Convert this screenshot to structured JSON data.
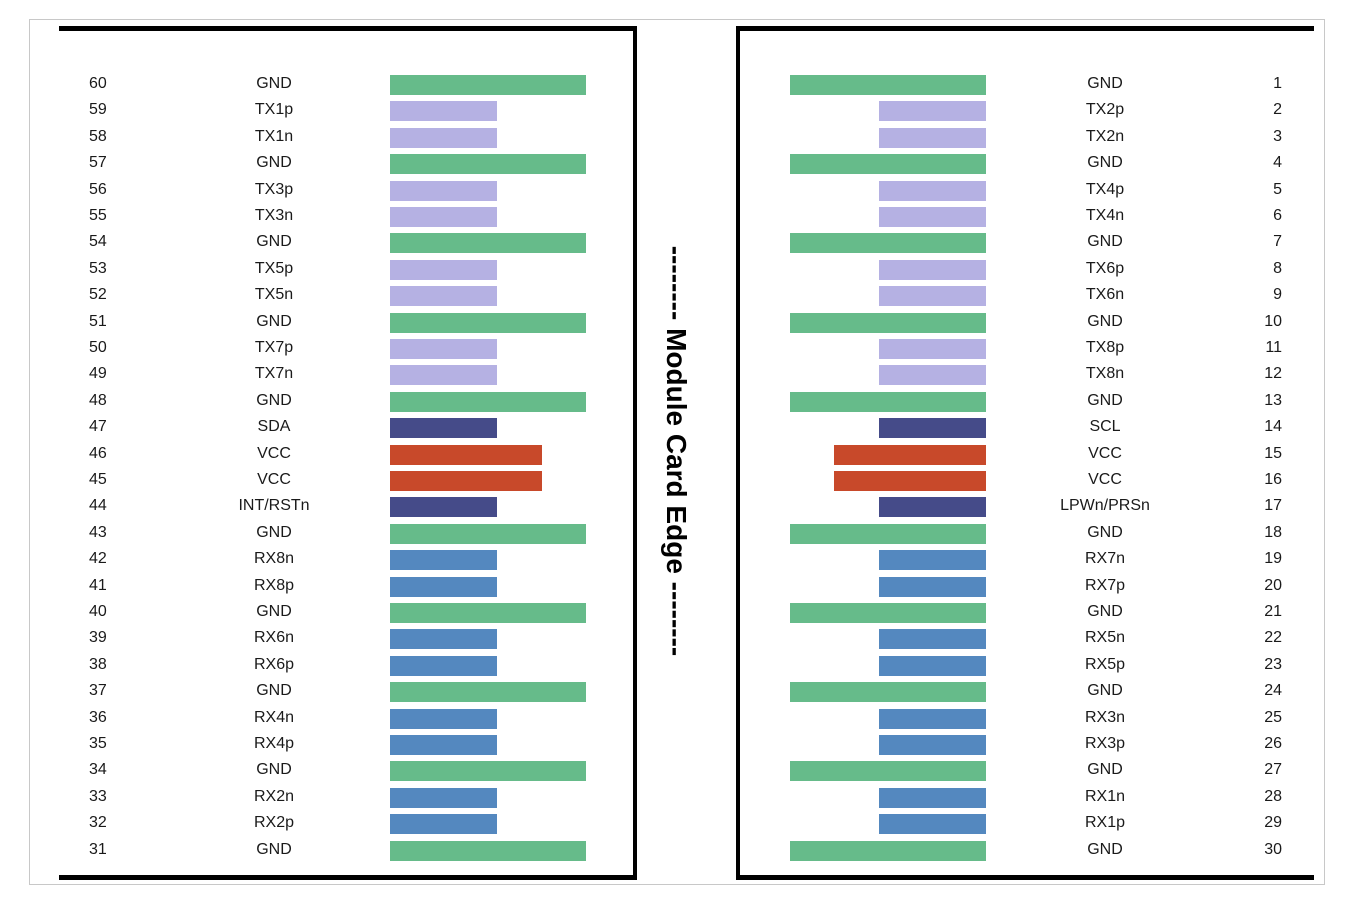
{
  "title": "Module Card Edge",
  "colors": {
    "GND": "#66bb8a",
    "TX": "#b5b1e3",
    "RX": "#5488bf",
    "CTRL": "#454b89",
    "VCC": "#c8492a"
  },
  "left_pins": [
    {
      "pin": "60",
      "signal": "GND",
      "type": "GND"
    },
    {
      "pin": "59",
      "signal": "TX1p",
      "type": "TX"
    },
    {
      "pin": "58",
      "signal": "TX1n",
      "type": "TX"
    },
    {
      "pin": "57",
      "signal": "GND",
      "type": "GND"
    },
    {
      "pin": "56",
      "signal": "TX3p",
      "type": "TX"
    },
    {
      "pin": "55",
      "signal": "TX3n",
      "type": "TX"
    },
    {
      "pin": "54",
      "signal": "GND",
      "type": "GND"
    },
    {
      "pin": "53",
      "signal": "TX5p",
      "type": "TX"
    },
    {
      "pin": "52",
      "signal": "TX5n",
      "type": "TX"
    },
    {
      "pin": "51",
      "signal": "GND",
      "type": "GND"
    },
    {
      "pin": "50",
      "signal": "TX7p",
      "type": "TX"
    },
    {
      "pin": "49",
      "signal": "TX7n",
      "type": "TX"
    },
    {
      "pin": "48",
      "signal": "GND",
      "type": "GND"
    },
    {
      "pin": "47",
      "signal": "SDA",
      "type": "CTRL"
    },
    {
      "pin": "46",
      "signal": "VCC",
      "type": "VCC"
    },
    {
      "pin": "45",
      "signal": "VCC",
      "type": "VCC"
    },
    {
      "pin": "44",
      "signal": "INT/RSTn",
      "type": "CTRL"
    },
    {
      "pin": "43",
      "signal": "GND",
      "type": "GND"
    },
    {
      "pin": "42",
      "signal": "RX8n",
      "type": "RX"
    },
    {
      "pin": "41",
      "signal": "RX8p",
      "type": "RX"
    },
    {
      "pin": "40",
      "signal": "GND",
      "type": "GND"
    },
    {
      "pin": "39",
      "signal": "RX6n",
      "type": "RX"
    },
    {
      "pin": "38",
      "signal": "RX6p",
      "type": "RX"
    },
    {
      "pin": "37",
      "signal": "GND",
      "type": "GND"
    },
    {
      "pin": "36",
      "signal": "RX4n",
      "type": "RX"
    },
    {
      "pin": "35",
      "signal": "RX4p",
      "type": "RX"
    },
    {
      "pin": "34",
      "signal": "GND",
      "type": "GND"
    },
    {
      "pin": "33",
      "signal": "RX2n",
      "type": "RX"
    },
    {
      "pin": "32",
      "signal": "RX2p",
      "type": "RX"
    },
    {
      "pin": "31",
      "signal": "GND",
      "type": "GND"
    }
  ],
  "right_pins": [
    {
      "pin": "1",
      "signal": "GND",
      "type": "GND"
    },
    {
      "pin": "2",
      "signal": "TX2p",
      "type": "TX"
    },
    {
      "pin": "3",
      "signal": "TX2n",
      "type": "TX"
    },
    {
      "pin": "4",
      "signal": "GND",
      "type": "GND"
    },
    {
      "pin": "5",
      "signal": "TX4p",
      "type": "TX"
    },
    {
      "pin": "6",
      "signal": "TX4n",
      "type": "TX"
    },
    {
      "pin": "7",
      "signal": "GND",
      "type": "GND"
    },
    {
      "pin": "8",
      "signal": "TX6p",
      "type": "TX"
    },
    {
      "pin": "9",
      "signal": "TX6n",
      "type": "TX"
    },
    {
      "pin": "10",
      "signal": "GND",
      "type": "GND"
    },
    {
      "pin": "11",
      "signal": "TX8p",
      "type": "TX"
    },
    {
      "pin": "12",
      "signal": "TX8n",
      "type": "TX"
    },
    {
      "pin": "13",
      "signal": "GND",
      "type": "GND"
    },
    {
      "pin": "14",
      "signal": "SCL",
      "type": "CTRL"
    },
    {
      "pin": "15",
      "signal": "VCC",
      "type": "VCC"
    },
    {
      "pin": "16",
      "signal": "VCC",
      "type": "VCC"
    },
    {
      "pin": "17",
      "signal": "LPWn/PRSn",
      "type": "CTRL"
    },
    {
      "pin": "18",
      "signal": "GND",
      "type": "GND"
    },
    {
      "pin": "19",
      "signal": "RX7n",
      "type": "RX"
    },
    {
      "pin": "20",
      "signal": "RX7p",
      "type": "RX"
    },
    {
      "pin": "21",
      "signal": "GND",
      "type": "GND"
    },
    {
      "pin": "22",
      "signal": "RX5n",
      "type": "RX"
    },
    {
      "pin": "23",
      "signal": "RX5p",
      "type": "RX"
    },
    {
      "pin": "24",
      "signal": "GND",
      "type": "GND"
    },
    {
      "pin": "25",
      "signal": "RX3n",
      "type": "RX"
    },
    {
      "pin": "26",
      "signal": "RX3p",
      "type": "RX"
    },
    {
      "pin": "27",
      "signal": "GND",
      "type": "GND"
    },
    {
      "pin": "28",
      "signal": "RX1n",
      "type": "RX"
    },
    {
      "pin": "29",
      "signal": "RX1p",
      "type": "RX"
    },
    {
      "pin": "30",
      "signal": "GND",
      "type": "GND"
    }
  ]
}
